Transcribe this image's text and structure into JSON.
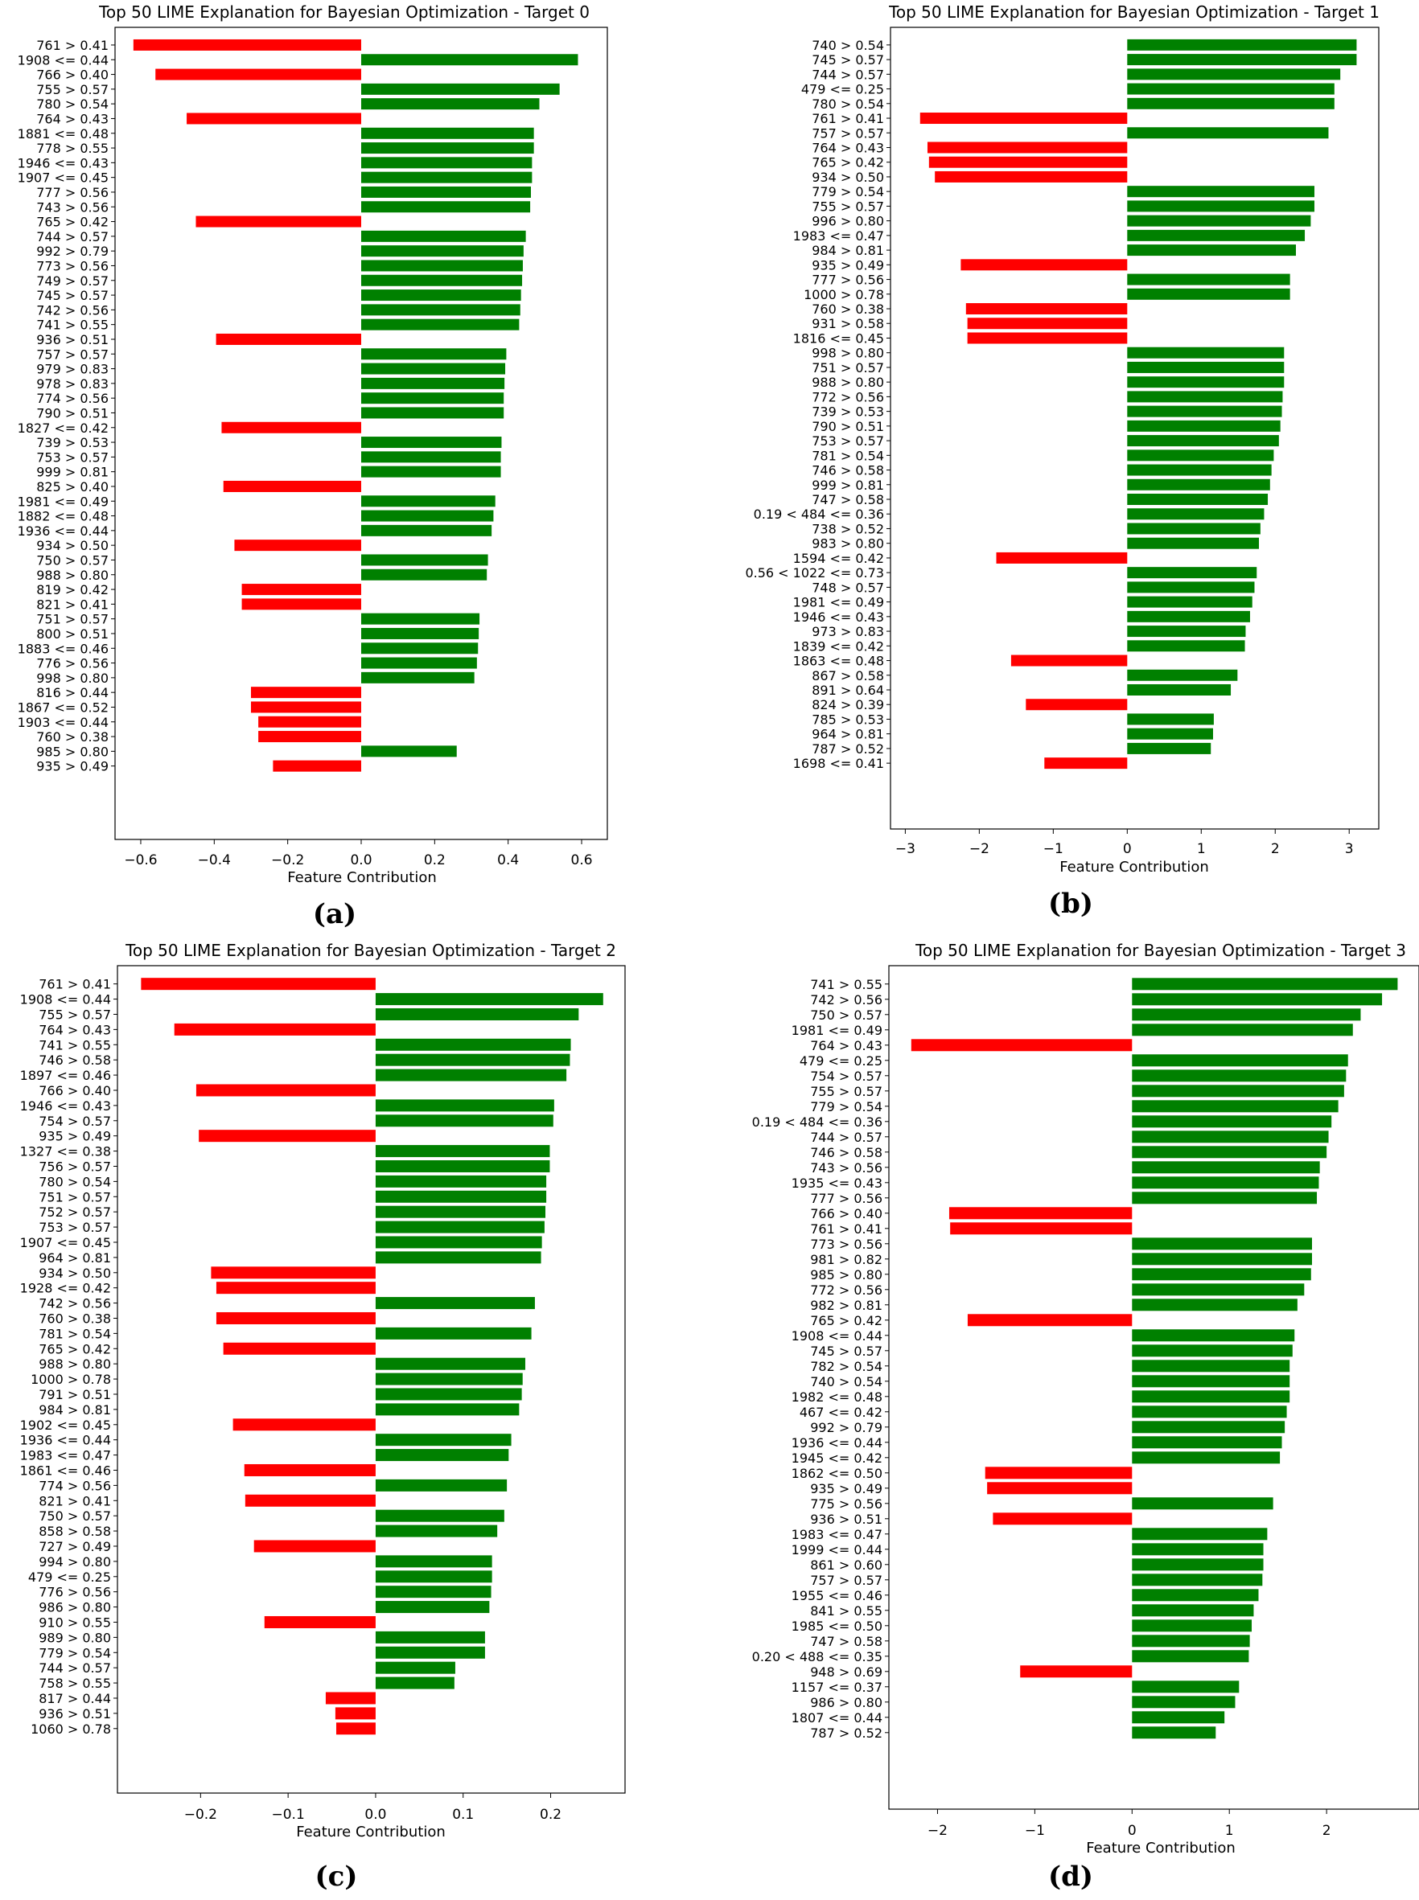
{
  "colors": {
    "positive": "#008000",
    "negative": "#ff0000",
    "axis": "#000000",
    "text": "#000000",
    "background": "#ffffff"
  },
  "chart_data": [
    {
      "type": "bar",
      "orientation": "horizontal",
      "title": "Top 50 LIME Explanation for Bayesian Optimization - Target 0",
      "xlabel": "Feature Contribution",
      "panel_label": "(a)",
      "xlim": [
        -0.67,
        0.67
      ],
      "xticks": [
        -0.6,
        -0.4,
        -0.2,
        0.0,
        0.2,
        0.4,
        0.6
      ],
      "xtick_labels": [
        "−0.6",
        "−0.4",
        "−0.2",
        "0.0",
        "0.2",
        "0.4",
        "0.6"
      ],
      "grid": false,
      "categories": [
        "761 > 0.41",
        "1908 <= 0.44",
        "766 > 0.40",
        "755 > 0.57",
        "780 > 0.54",
        "764 > 0.43",
        "1881 <= 0.48",
        "778 > 0.55",
        "1946 <= 0.43",
        "1907 <= 0.45",
        "777 > 0.56",
        "743 > 0.56",
        "765 > 0.42",
        "744 > 0.57",
        "992 > 0.79",
        "773 > 0.56",
        "749 > 0.57",
        "745 > 0.57",
        "742 > 0.56",
        "741 > 0.55",
        "936 > 0.51",
        "757 > 0.57",
        "979 > 0.83",
        "978 > 0.83",
        "774 > 0.56",
        "790 > 0.51",
        "1827 <= 0.42",
        "739 > 0.53",
        "753 > 0.57",
        "999 > 0.81",
        "825 > 0.40",
        "1981 <= 0.49",
        "1882 <= 0.48",
        "1936 <= 0.44",
        "934 > 0.50",
        "750 > 0.57",
        "988 > 0.80",
        "819 > 0.42",
        "821 > 0.41",
        "751 > 0.57",
        "800 > 0.51",
        "1883 <= 0.46",
        "776 > 0.56",
        "998 > 0.80",
        "816 > 0.44",
        "1867 <= 0.52",
        "1903 <= 0.44",
        "760 > 0.38",
        "985 > 0.80",
        "935 > 0.49"
      ],
      "values": [
        -0.62,
        0.59,
        -0.56,
        0.54,
        0.485,
        -0.475,
        0.47,
        0.47,
        0.465,
        0.465,
        0.462,
        0.46,
        -0.45,
        0.448,
        0.442,
        0.44,
        0.438,
        0.435,
        0.433,
        0.43,
        -0.395,
        0.395,
        0.392,
        0.39,
        0.388,
        0.388,
        -0.38,
        0.382,
        0.38,
        0.38,
        -0.375,
        0.365,
        0.36,
        0.355,
        -0.345,
        0.345,
        0.342,
        -0.325,
        -0.325,
        0.322,
        0.32,
        0.318,
        0.315,
        0.308,
        -0.3,
        -0.3,
        -0.28,
        -0.28,
        0.26,
        -0.24
      ]
    },
    {
      "type": "bar",
      "orientation": "horizontal",
      "title": "Top 50 LIME Explanation for Bayesian Optimization - Target 1",
      "xlabel": "Feature Contribution",
      "panel_label": "(b)",
      "xlim": [
        -3.2,
        3.4
      ],
      "xticks": [
        -3,
        -2,
        -1,
        0,
        1,
        2,
        3
      ],
      "xtick_labels": [
        "−3",
        "−2",
        "−1",
        "0",
        "1",
        "2",
        "3"
      ],
      "grid": false,
      "categories": [
        "740 > 0.54",
        "745 > 0.57",
        "744 > 0.57",
        "479 <= 0.25",
        "780 > 0.54",
        "761 > 0.41",
        "757 > 0.57",
        "764 > 0.43",
        "765 > 0.42",
        "934 > 0.50",
        "779 > 0.54",
        "755 > 0.57",
        "996 > 0.80",
        "1983 <= 0.47",
        "984 > 0.81",
        "935 > 0.49",
        "777 > 0.56",
        "1000 > 0.78",
        "760 > 0.38",
        "931 > 0.58",
        "1816 <= 0.45",
        "998 > 0.80",
        "751 > 0.57",
        "988 > 0.80",
        "772 > 0.56",
        "739 > 0.53",
        "790 > 0.51",
        "753 > 0.57",
        "781 > 0.54",
        "746 > 0.58",
        "999 > 0.81",
        "747 > 0.58",
        "0.19 < 484 <= 0.36",
        "738 > 0.52",
        "983 > 0.80",
        "1594 <= 0.42",
        "0.56 < 1022 <= 0.73",
        "748 > 0.57",
        "1981 <= 0.49",
        "1946 <= 0.43",
        "973 > 0.83",
        "1839 <= 0.42",
        "1863 <= 0.48",
        "867 > 0.58",
        "891 > 0.64",
        "824 > 0.39",
        "785 > 0.53",
        "964 > 0.81",
        "787 > 0.52",
        "1698 <= 0.41"
      ],
      "values": [
        3.1,
        3.1,
        2.88,
        2.8,
        2.8,
        -2.8,
        2.72,
        -2.7,
        -2.68,
        -2.6,
        2.53,
        2.53,
        2.48,
        2.4,
        2.28,
        -2.25,
        2.2,
        2.2,
        -2.18,
        -2.16,
        -2.16,
        2.12,
        2.12,
        2.12,
        2.1,
        2.09,
        2.07,
        2.05,
        1.98,
        1.95,
        1.93,
        1.9,
        1.85,
        1.8,
        1.78,
        -1.77,
        1.75,
        1.72,
        1.69,
        1.66,
        1.6,
        1.59,
        -1.57,
        1.49,
        1.4,
        -1.37,
        1.17,
        1.16,
        1.13,
        -1.12
      ]
    },
    {
      "type": "bar",
      "orientation": "horizontal",
      "title": "Top 50 LIME Explanation for Bayesian Optimization - Target 2",
      "xlabel": "Feature Contribution",
      "panel_label": "(c)",
      "xlim": [
        -0.295,
        0.285
      ],
      "xticks": [
        -0.2,
        -0.1,
        0.0,
        0.1,
        0.2
      ],
      "xtick_labels": [
        "−0.2",
        "−0.1",
        "0.0",
        "0.1",
        "0.2"
      ],
      "grid": false,
      "categories": [
        "761 > 0.41",
        "1908 <= 0.44",
        "755 > 0.57",
        "764 > 0.43",
        "741 > 0.55",
        "746 > 0.58",
        "1897 <= 0.46",
        "766 > 0.40",
        "1946 <= 0.43",
        "754 > 0.57",
        "935 > 0.49",
        "1327 <= 0.38",
        "756 > 0.57",
        "780 > 0.54",
        "751 > 0.57",
        "752 > 0.57",
        "753 > 0.57",
        "1907 <= 0.45",
        "964 > 0.81",
        "934 > 0.50",
        "1928 <= 0.42",
        "742 > 0.56",
        "760 > 0.38",
        "781 > 0.54",
        "765 > 0.42",
        "988 > 0.80",
        "1000 > 0.78",
        "791 > 0.51",
        "984 > 0.81",
        "1902 <= 0.45",
        "1936 <= 0.44",
        "1983 <= 0.47",
        "1861 <= 0.46",
        "774 > 0.56",
        "821 > 0.41",
        "750 > 0.57",
        "858 > 0.58",
        "727 > 0.49",
        "994 > 0.80",
        "479 <= 0.25",
        "776 > 0.56",
        "986 > 0.80",
        "910 > 0.55",
        "989 > 0.80",
        "779 > 0.54",
        "744 > 0.57",
        "758 > 0.55",
        "817 > 0.44",
        "936 > 0.51",
        "1060 > 0.78"
      ],
      "values": [
        -0.268,
        0.26,
        0.232,
        -0.23,
        0.223,
        0.222,
        0.218,
        -0.205,
        0.204,
        0.203,
        -0.202,
        0.199,
        0.199,
        0.195,
        0.195,
        0.194,
        0.193,
        0.19,
        0.189,
        -0.188,
        -0.182,
        0.182,
        -0.182,
        0.178,
        -0.174,
        0.171,
        0.168,
        0.167,
        0.164,
        -0.163,
        0.155,
        0.152,
        -0.15,
        0.15,
        -0.149,
        0.147,
        0.139,
        -0.139,
        0.133,
        0.133,
        0.132,
        0.13,
        -0.127,
        0.125,
        0.125,
        0.091,
        0.09,
        -0.057,
        -0.046,
        -0.045
      ]
    },
    {
      "type": "bar",
      "orientation": "horizontal",
      "title": "Top 50 LIME Explanation for Bayesian Optimization - Target 3",
      "xlabel": "Feature Contribution",
      "panel_label": "(d)",
      "xlim": [
        -2.5,
        2.95
      ],
      "xticks": [
        -2,
        -1,
        0,
        1,
        2
      ],
      "xtick_labels": [
        "−2",
        "−1",
        "0",
        "1",
        "2"
      ],
      "grid": false,
      "categories": [
        "741 > 0.55",
        "742 > 0.56",
        "750 > 0.57",
        "1981 <= 0.49",
        "764 > 0.43",
        "479 <= 0.25",
        "754 > 0.57",
        "755 > 0.57",
        "779 > 0.54",
        "0.19 < 484 <= 0.36",
        "744 > 0.57",
        "746 > 0.58",
        "743 > 0.56",
        "1935 <= 0.43",
        "777 > 0.56",
        "766 > 0.40",
        "761 > 0.41",
        "773 > 0.56",
        "981 > 0.82",
        "985 > 0.80",
        "772 > 0.56",
        "982 > 0.81",
        "765 > 0.42",
        "1908 <= 0.44",
        "745 > 0.57",
        "782 > 0.54",
        "740 > 0.54",
        "1982 <= 0.48",
        "467 <= 0.42",
        "992 > 0.79",
        "1936 <= 0.44",
        "1945 <= 0.42",
        "1862 <= 0.50",
        "935 > 0.49",
        "775 > 0.56",
        "936 > 0.51",
        "1983 <= 0.47",
        "1999 <= 0.44",
        "861 > 0.60",
        "757 > 0.57",
        "1955 <= 0.46",
        "841 > 0.55",
        "1985 <= 0.50",
        "747 > 0.58",
        "0.20 < 488 <= 0.35",
        "948 > 0.69",
        "1157 <= 0.37",
        "986 > 0.80",
        "1807 <= 0.44",
        "787 > 0.52"
      ],
      "values": [
        2.73,
        2.57,
        2.35,
        2.27,
        -2.27,
        2.22,
        2.2,
        2.18,
        2.12,
        2.05,
        2.02,
        2,
        1.93,
        1.92,
        1.9,
        -1.88,
        -1.87,
        1.85,
        1.85,
        1.84,
        1.77,
        1.7,
        -1.69,
        1.67,
        1.65,
        1.62,
        1.62,
        1.62,
        1.59,
        1.57,
        1.54,
        1.52,
        -1.51,
        -1.49,
        1.45,
        -1.43,
        1.39,
        1.35,
        1.35,
        1.34,
        1.3,
        1.25,
        1.23,
        1.21,
        1.2,
        -1.15,
        1.1,
        1.06,
        0.95,
        0.86
      ]
    }
  ]
}
